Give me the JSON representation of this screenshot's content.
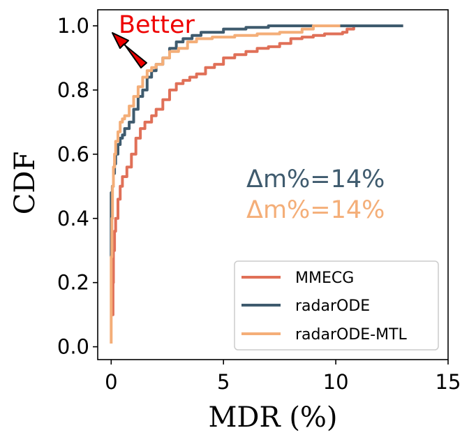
{
  "chart_data": {
    "type": "line",
    "title": "",
    "xlabel": "MDR (%)",
    "ylabel": "CDF",
    "xlim": [
      -0.6,
      15
    ],
    "ylim": [
      -0.04,
      1.05
    ],
    "x_ticks": [
      "0",
      "5",
      "10",
      "15"
    ],
    "y_ticks": [
      "0.0",
      "0.2",
      "0.4",
      "0.6",
      "0.8",
      "1.0"
    ],
    "grid": false,
    "legend_position": "lower-right",
    "colors": {
      "mmecg": "#e07058",
      "radarode": "#3f5b6e",
      "radarode_mtl": "#f4ae78",
      "better": "#ee0000"
    },
    "annotations": {
      "better": "Better",
      "delta1": "Δm%=14%",
      "delta2": "Δm%=14%"
    },
    "series": [
      {
        "name": "MMECG",
        "x": [
          0.05,
          0.08,
          0.1,
          0.15,
          0.2,
          0.3,
          0.4,
          0.5,
          0.7,
          0.9,
          1.1,
          1.3,
          1.5,
          1.8,
          2.0,
          2.3,
          2.6,
          2.9,
          3.2,
          3.5,
          3.8,
          4.2,
          4.6,
          5.0,
          5.5,
          6.0,
          6.5,
          7.0,
          7.5,
          8.0,
          8.5,
          9.0,
          9.5,
          10.0,
          10.3,
          10.5,
          10.8,
          11.5,
          12.5,
          13.0
        ],
        "y": [
          0.1,
          0.2,
          0.3,
          0.36,
          0.4,
          0.46,
          0.5,
          0.53,
          0.56,
          0.6,
          0.65,
          0.68,
          0.7,
          0.72,
          0.74,
          0.77,
          0.8,
          0.82,
          0.83,
          0.84,
          0.85,
          0.87,
          0.88,
          0.9,
          0.91,
          0.92,
          0.93,
          0.935,
          0.945,
          0.96,
          0.965,
          0.97,
          0.975,
          0.975,
          0.98,
          0.99,
          1.0,
          1.0,
          1.0,
          1.0
        ]
      },
      {
        "name": "radarODE",
        "x": [
          0.0,
          0.0,
          0.05,
          0.1,
          0.15,
          0.2,
          0.3,
          0.4,
          0.5,
          0.6,
          0.8,
          1.0,
          1.2,
          1.4,
          1.6,
          1.8,
          2.0,
          2.3,
          2.6,
          2.9,
          3.2,
          3.6,
          4.0,
          5.0,
          6.0,
          7.0,
          7.4,
          8.0,
          9.0,
          10.0,
          11.0,
          12.0,
          13.0
        ],
        "y": [
          0.28,
          0.48,
          0.5,
          0.54,
          0.57,
          0.6,
          0.63,
          0.65,
          0.66,
          0.68,
          0.7,
          0.74,
          0.78,
          0.8,
          0.84,
          0.86,
          0.88,
          0.9,
          0.93,
          0.95,
          0.96,
          0.97,
          0.98,
          0.99,
          0.995,
          1.0,
          1.0,
          1.0,
          1.0,
          1.0,
          1.0,
          1.0,
          1.0
        ]
      },
      {
        "name": "radarODE-MTL",
        "x": [
          0.0,
          0.0,
          0.03,
          0.06,
          0.1,
          0.15,
          0.2,
          0.3,
          0.4,
          0.5,
          0.6,
          0.8,
          1.0,
          1.2,
          1.4,
          1.6,
          1.8,
          2.0,
          2.3,
          2.6,
          3.0,
          3.4,
          3.8,
          4.5,
          5.5,
          6.5,
          7.5,
          8.5,
          9.0,
          9.5,
          10.2
        ],
        "y": [
          0.01,
          0.28,
          0.4,
          0.5,
          0.56,
          0.6,
          0.64,
          0.67,
          0.7,
          0.71,
          0.72,
          0.75,
          0.78,
          0.81,
          0.84,
          0.86,
          0.87,
          0.88,
          0.9,
          0.92,
          0.93,
          0.95,
          0.96,
          0.965,
          0.97,
          0.975,
          0.98,
          0.99,
          1.0,
          1.0,
          1.0
        ]
      }
    ]
  }
}
